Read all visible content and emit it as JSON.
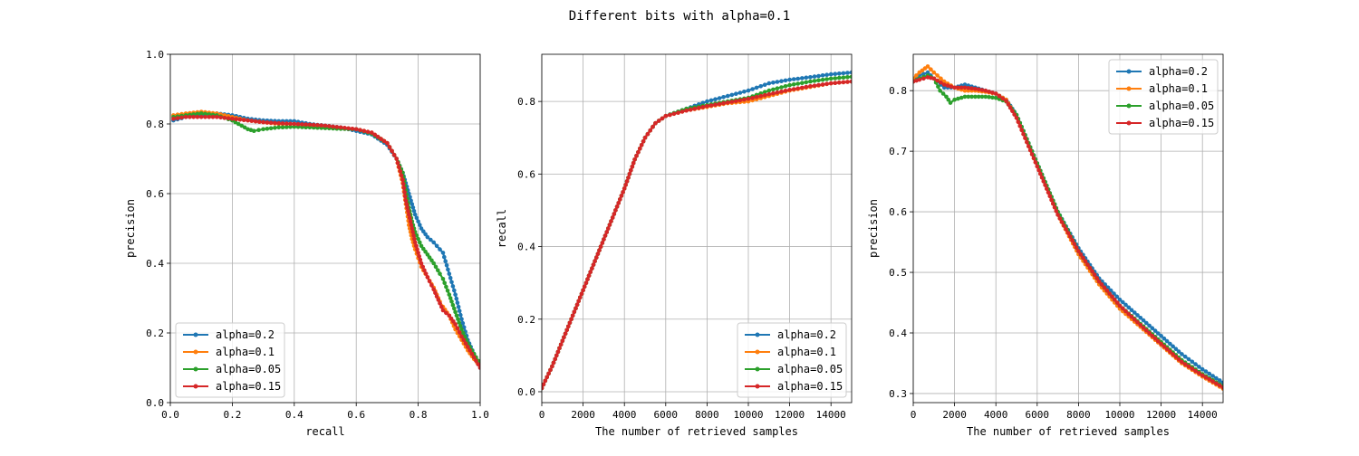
{
  "figure": {
    "title": "Different bits with alpha=0.1"
  },
  "series_colors": {
    "alpha=0.2": "#1f77b4",
    "alpha=0.1": "#ff7f0e",
    "alpha=0.05": "#2ca02c",
    "alpha=0.15": "#d62728"
  },
  "chart_data": [
    {
      "type": "line",
      "xlabel": "recall",
      "ylabel": "precision",
      "xlim": [
        0,
        1.0
      ],
      "ylim": [
        0,
        1.0
      ],
      "xticks": [
        "0.0",
        "0.2",
        "0.4",
        "0.6",
        "0.8",
        "1.0"
      ],
      "yticks": [
        "0.0",
        "0.2",
        "0.4",
        "0.6",
        "0.8",
        "1.0"
      ],
      "grid": true,
      "legend": "lower-left",
      "series": [
        {
          "name": "alpha=0.2",
          "x": [
            0.01,
            0.05,
            0.1,
            0.15,
            0.2,
            0.25,
            0.3,
            0.35,
            0.4,
            0.45,
            0.5,
            0.55,
            0.6,
            0.65,
            0.7,
            0.73,
            0.75,
            0.76,
            0.77,
            0.78,
            0.79,
            0.8,
            0.81,
            0.83,
            0.85,
            0.87,
            0.88,
            0.9,
            0.92,
            0.94,
            0.96,
            0.98,
            1.0
          ],
          "y": [
            0.81,
            0.82,
            0.825,
            0.83,
            0.825,
            0.815,
            0.81,
            0.808,
            0.808,
            0.8,
            0.795,
            0.79,
            0.78,
            0.77,
            0.74,
            0.7,
            0.66,
            0.63,
            0.6,
            0.57,
            0.54,
            0.52,
            0.5,
            0.475,
            0.46,
            0.44,
            0.43,
            0.37,
            0.31,
            0.24,
            0.18,
            0.14,
            0.1
          ]
        },
        {
          "name": "alpha=0.1",
          "x": [
            0.01,
            0.05,
            0.1,
            0.15,
            0.2,
            0.25,
            0.3,
            0.35,
            0.4,
            0.45,
            0.5,
            0.55,
            0.6,
            0.65,
            0.7,
            0.73,
            0.75,
            0.76,
            0.77,
            0.78,
            0.79,
            0.8,
            0.81,
            0.83,
            0.85,
            0.87,
            0.88,
            0.9,
            0.92,
            0.94,
            0.96,
            0.98,
            1.0
          ],
          "y": [
            0.825,
            0.83,
            0.835,
            0.83,
            0.82,
            0.81,
            0.805,
            0.8,
            0.8,
            0.795,
            0.792,
            0.788,
            0.785,
            0.775,
            0.745,
            0.7,
            0.63,
            0.57,
            0.51,
            0.47,
            0.44,
            0.415,
            0.39,
            0.36,
            0.33,
            0.29,
            0.275,
            0.25,
            0.21,
            0.18,
            0.15,
            0.125,
            0.105
          ]
        },
        {
          "name": "alpha=0.05",
          "x": [
            0.01,
            0.05,
            0.1,
            0.15,
            0.2,
            0.23,
            0.25,
            0.27,
            0.3,
            0.35,
            0.4,
            0.45,
            0.5,
            0.55,
            0.6,
            0.65,
            0.7,
            0.73,
            0.75,
            0.76,
            0.77,
            0.78,
            0.79,
            0.8,
            0.81,
            0.83,
            0.85,
            0.87,
            0.88,
            0.9,
            0.92,
            0.94,
            0.96,
            0.98,
            1.0
          ],
          "y": [
            0.82,
            0.825,
            0.83,
            0.825,
            0.81,
            0.795,
            0.785,
            0.78,
            0.785,
            0.79,
            0.792,
            0.79,
            0.788,
            0.786,
            0.785,
            0.772,
            0.745,
            0.7,
            0.66,
            0.61,
            0.56,
            0.52,
            0.49,
            0.47,
            0.45,
            0.425,
            0.4,
            0.37,
            0.355,
            0.31,
            0.26,
            0.21,
            0.17,
            0.14,
            0.11
          ]
        },
        {
          "name": "alpha=0.15",
          "x": [
            0.01,
            0.05,
            0.1,
            0.15,
            0.2,
            0.25,
            0.3,
            0.35,
            0.4,
            0.45,
            0.5,
            0.55,
            0.6,
            0.65,
            0.7,
            0.73,
            0.75,
            0.76,
            0.77,
            0.78,
            0.79,
            0.8,
            0.81,
            0.83,
            0.85,
            0.87,
            0.88,
            0.9,
            0.92,
            0.94,
            0.96,
            0.98,
            1.0
          ],
          "y": [
            0.815,
            0.82,
            0.82,
            0.82,
            0.815,
            0.81,
            0.805,
            0.802,
            0.8,
            0.798,
            0.795,
            0.79,
            0.785,
            0.775,
            0.745,
            0.7,
            0.64,
            0.58,
            0.54,
            0.5,
            0.46,
            0.43,
            0.4,
            0.36,
            0.325,
            0.285,
            0.265,
            0.25,
            0.225,
            0.19,
            0.16,
            0.13,
            0.1
          ]
        }
      ]
    },
    {
      "type": "line",
      "xlabel": "The number of retrieved samples",
      "ylabel": "recall",
      "xlim": [
        0,
        15000
      ],
      "ylim": [
        -0.03,
        0.93
      ],
      "xticks": [
        "0",
        "2000",
        "4000",
        "6000",
        "8000",
        "10000",
        "12000",
        "14000"
      ],
      "yticks": [
        "0.0",
        "0.2",
        "0.4",
        "0.6",
        "0.8"
      ],
      "grid": true,
      "legend": "lower-right",
      "series": [
        {
          "name": "alpha=0.2",
          "x": [
            0,
            500,
            1000,
            1500,
            2000,
            2500,
            3000,
            3500,
            4000,
            4500,
            5000,
            5500,
            6000,
            7000,
            8000,
            9000,
            10000,
            11000,
            12000,
            13000,
            14000,
            15000
          ],
          "y": [
            0.01,
            0.07,
            0.14,
            0.21,
            0.28,
            0.35,
            0.42,
            0.49,
            0.56,
            0.64,
            0.7,
            0.74,
            0.76,
            0.78,
            0.8,
            0.815,
            0.83,
            0.85,
            0.86,
            0.867,
            0.875,
            0.88
          ]
        },
        {
          "name": "alpha=0.1",
          "x": [
            0,
            500,
            1000,
            1500,
            2000,
            2500,
            3000,
            3500,
            4000,
            4500,
            5000,
            5500,
            6000,
            7000,
            8000,
            9000,
            10000,
            11000,
            12000,
            13000,
            14000,
            15000
          ],
          "y": [
            0.01,
            0.07,
            0.14,
            0.21,
            0.28,
            0.35,
            0.42,
            0.49,
            0.56,
            0.64,
            0.7,
            0.74,
            0.76,
            0.775,
            0.785,
            0.795,
            0.8,
            0.815,
            0.83,
            0.84,
            0.85,
            0.855
          ]
        },
        {
          "name": "alpha=0.05",
          "x": [
            0,
            500,
            1000,
            1500,
            2000,
            2500,
            3000,
            3500,
            4000,
            4500,
            5000,
            5500,
            6000,
            7000,
            8000,
            9000,
            10000,
            11000,
            12000,
            13000,
            14000,
            15000
          ],
          "y": [
            0.01,
            0.07,
            0.14,
            0.21,
            0.28,
            0.35,
            0.42,
            0.49,
            0.56,
            0.64,
            0.7,
            0.74,
            0.76,
            0.78,
            0.79,
            0.8,
            0.81,
            0.83,
            0.845,
            0.855,
            0.863,
            0.868
          ]
        },
        {
          "name": "alpha=0.15",
          "x": [
            0,
            500,
            1000,
            1500,
            2000,
            2500,
            3000,
            3500,
            4000,
            4500,
            5000,
            5500,
            6000,
            7000,
            8000,
            9000,
            10000,
            11000,
            12000,
            13000,
            14000,
            15000
          ],
          "y": [
            0.01,
            0.07,
            0.14,
            0.21,
            0.28,
            0.35,
            0.42,
            0.49,
            0.56,
            0.64,
            0.7,
            0.74,
            0.76,
            0.775,
            0.787,
            0.797,
            0.807,
            0.82,
            0.832,
            0.842,
            0.85,
            0.855
          ]
        }
      ]
    },
    {
      "type": "line",
      "xlabel": "The number of retrieved samples",
      "ylabel": "precision",
      "xlim": [
        0,
        15000
      ],
      "ylim": [
        0.285,
        0.86
      ],
      "xticks": [
        "0",
        "2000",
        "4000",
        "6000",
        "8000",
        "10000",
        "12000",
        "14000"
      ],
      "yticks": [
        "0.3",
        "0.4",
        "0.5",
        "0.6",
        "0.7",
        "0.8"
      ],
      "grid": true,
      "legend": "upper-right",
      "series": [
        {
          "name": "alpha=0.2",
          "x": [
            0,
            300,
            700,
            1000,
            1500,
            2000,
            2500,
            3000,
            3500,
            4000,
            4500,
            5000,
            5500,
            6000,
            7000,
            8000,
            9000,
            10000,
            11000,
            12000,
            13000,
            14000,
            15000
          ],
          "y": [
            0.82,
            0.825,
            0.83,
            0.82,
            0.805,
            0.805,
            0.81,
            0.805,
            0.8,
            0.795,
            0.785,
            0.76,
            0.72,
            0.68,
            0.6,
            0.54,
            0.49,
            0.455,
            0.425,
            0.395,
            0.365,
            0.34,
            0.318
          ]
        },
        {
          "name": "alpha=0.1",
          "x": [
            0,
            300,
            700,
            1000,
            1500,
            2000,
            2500,
            3000,
            3500,
            4000,
            4500,
            5000,
            5500,
            6000,
            7000,
            8000,
            9000,
            10000,
            11000,
            12000,
            13000,
            14000,
            15000
          ],
          "y": [
            0.82,
            0.83,
            0.84,
            0.83,
            0.815,
            0.805,
            0.8,
            0.8,
            0.798,
            0.795,
            0.785,
            0.755,
            0.715,
            0.675,
            0.595,
            0.53,
            0.48,
            0.44,
            0.41,
            0.38,
            0.35,
            0.328,
            0.308
          ]
        },
        {
          "name": "alpha=0.05",
          "x": [
            0,
            300,
            700,
            1000,
            1300,
            1600,
            1800,
            2000,
            2500,
            3000,
            3500,
            4000,
            4500,
            5000,
            5500,
            6000,
            7000,
            8000,
            9000,
            10000,
            11000,
            12000,
            13000,
            14000,
            15000
          ],
          "y": [
            0.815,
            0.82,
            0.825,
            0.82,
            0.8,
            0.79,
            0.78,
            0.785,
            0.79,
            0.79,
            0.79,
            0.788,
            0.782,
            0.76,
            0.72,
            0.68,
            0.6,
            0.535,
            0.485,
            0.445,
            0.415,
            0.385,
            0.355,
            0.332,
            0.312
          ]
        },
        {
          "name": "alpha=0.15",
          "x": [
            0,
            300,
            700,
            1000,
            1500,
            2000,
            2500,
            3000,
            3500,
            4000,
            4500,
            5000,
            5500,
            6000,
            7000,
            8000,
            9000,
            10000,
            11000,
            12000,
            13000,
            14000,
            15000
          ],
          "y": [
            0.815,
            0.818,
            0.822,
            0.82,
            0.81,
            0.805,
            0.805,
            0.803,
            0.8,
            0.795,
            0.783,
            0.755,
            0.715,
            0.675,
            0.595,
            0.535,
            0.485,
            0.445,
            0.413,
            0.382,
            0.352,
            0.33,
            0.31
          ]
        }
      ]
    }
  ]
}
